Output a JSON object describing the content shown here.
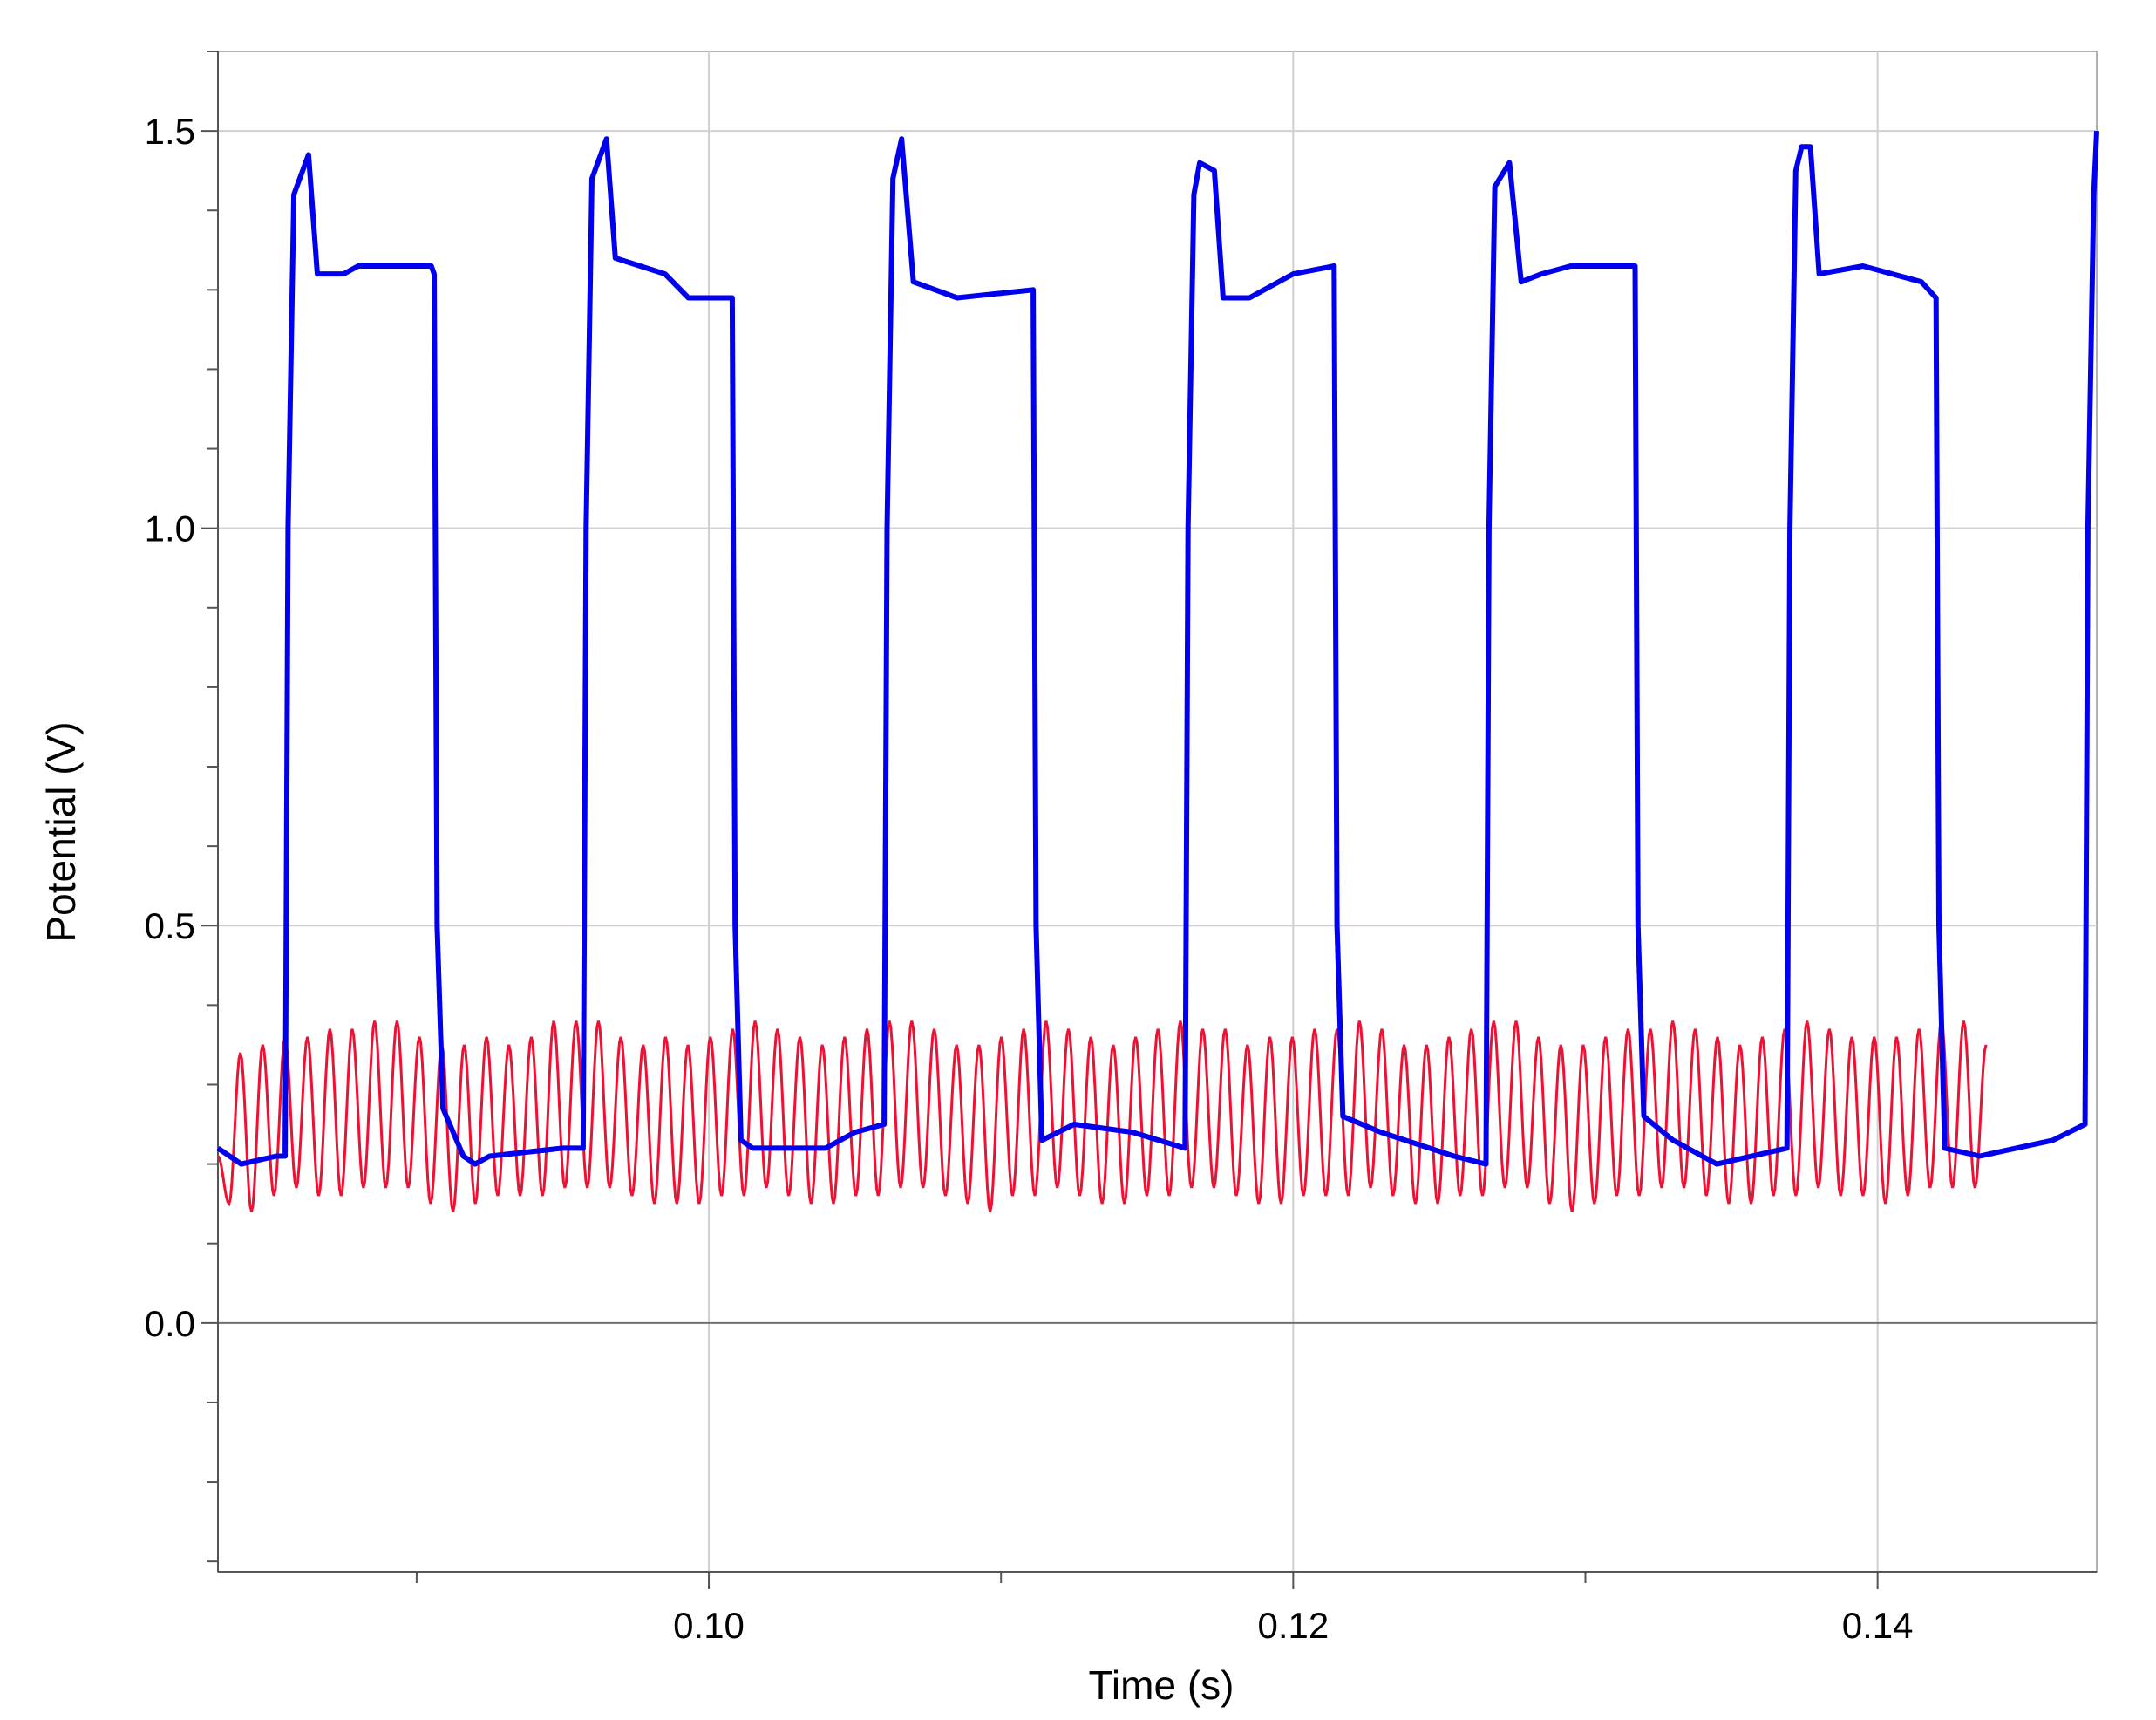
{
  "chart_data": {
    "type": "line",
    "title": "",
    "xlabel": "Time (s)",
    "ylabel": "Potential (V)",
    "xlim": [
      0.0832,
      0.1475
    ],
    "ylim": [
      -0.313,
      1.6
    ],
    "grid": true,
    "x_ticks": [
      0.1,
      0.12,
      0.14
    ],
    "x_tick_labels": [
      "0.10",
      "0.12",
      "0.14"
    ],
    "x_minor_step": 0.01,
    "y_ticks": [
      0.0,
      0.5,
      1.0,
      1.5
    ],
    "y_tick_labels": [
      "0.0",
      "0.5",
      "1.0",
      "1.5"
    ],
    "y_minor_step": 0.1,
    "series": [
      {
        "name": "blue",
        "color": "#0000ee",
        "x": [
          0.0832,
          0.084,
          0.0852,
          0.0855,
          0.0856,
          0.0858,
          0.0863,
          0.0866,
          0.0875,
          0.088,
          0.0905,
          0.0906,
          0.0907,
          0.0909,
          0.0916,
          0.092,
          0.0925,
          0.095,
          0.0957,
          0.0958,
          0.096,
          0.0965,
          0.0968,
          0.0985,
          0.0993,
          0.1008,
          0.1009,
          0.1011,
          0.1015,
          0.104,
          0.105,
          0.106,
          0.1061,
          0.1063,
          0.1066,
          0.107,
          0.1085,
          0.1111,
          0.1112,
          0.1114,
          0.1125,
          0.1145,
          0.1163,
          0.1164,
          0.1166,
          0.1168,
          0.1173,
          0.1176,
          0.1185,
          0.12,
          0.1214,
          0.1215,
          0.1217,
          0.123,
          0.1255,
          0.1266,
          0.1267,
          0.1269,
          0.1274,
          0.1278,
          0.1285,
          0.1295,
          0.1317,
          0.1318,
          0.132,
          0.133,
          0.1345,
          0.1369,
          0.137,
          0.1372,
          0.1374,
          0.1377,
          0.138,
          0.1395,
          0.1415,
          0.142,
          0.1421,
          0.1423,
          0.1435,
          0.146,
          0.1471,
          0.1472,
          0.1474,
          0.1475
        ],
        "y": [
          0.22,
          0.2,
          0.21,
          0.21,
          1.0,
          1.42,
          1.47,
          1.32,
          1.32,
          1.33,
          1.33,
          1.32,
          0.5,
          0.27,
          0.21,
          0.2,
          0.21,
          0.22,
          0.22,
          1.0,
          1.44,
          1.49,
          1.34,
          1.32,
          1.29,
          1.29,
          0.5,
          0.23,
          0.22,
          0.22,
          0.24,
          0.25,
          1.0,
          1.44,
          1.49,
          1.31,
          1.29,
          1.3,
          0.5,
          0.23,
          0.25,
          0.24,
          0.22,
          1.0,
          1.42,
          1.46,
          1.45,
          1.29,
          1.29,
          1.32,
          1.33,
          0.5,
          0.26,
          0.24,
          0.21,
          0.2,
          1.0,
          1.43,
          1.46,
          1.31,
          1.32,
          1.33,
          1.33,
          0.5,
          0.26,
          0.23,
          0.2,
          0.22,
          1.0,
          1.45,
          1.48,
          1.48,
          1.32,
          1.33,
          1.31,
          1.29,
          0.5,
          0.22,
          0.21,
          0.23,
          0.25,
          1.0,
          1.42,
          1.5
        ]
      },
      {
        "name": "red",
        "color": "#ee1133",
        "t_start": 0.0832,
        "half_period": 0.000383,
        "y": [
          0.21,
          0.15,
          0.34,
          0.14,
          0.35,
          0.16,
          0.36,
          0.17,
          0.36,
          0.16,
          0.37,
          0.16,
          0.37,
          0.17,
          0.38,
          0.17,
          0.38,
          0.17,
          0.36,
          0.15,
          0.35,
          0.14,
          0.35,
          0.15,
          0.36,
          0.16,
          0.35,
          0.16,
          0.36,
          0.16,
          0.38,
          0.17,
          0.38,
          0.17,
          0.38,
          0.17,
          0.36,
          0.16,
          0.35,
          0.15,
          0.36,
          0.15,
          0.35,
          0.15,
          0.36,
          0.16,
          0.37,
          0.16,
          0.38,
          0.17,
          0.37,
          0.16,
          0.36,
          0.15,
          0.35,
          0.15,
          0.36,
          0.16,
          0.37,
          0.16,
          0.38,
          0.17,
          0.38,
          0.17,
          0.37,
          0.16,
          0.35,
          0.15,
          0.35,
          0.14,
          0.36,
          0.16,
          0.37,
          0.16,
          0.38,
          0.17,
          0.37,
          0.16,
          0.36,
          0.15,
          0.35,
          0.15,
          0.36,
          0.16,
          0.37,
          0.16,
          0.38,
          0.17,
          0.37,
          0.17,
          0.37,
          0.16,
          0.35,
          0.15,
          0.36,
          0.15,
          0.36,
          0.16,
          0.37,
          0.16,
          0.37,
          0.16,
          0.38,
          0.17,
          0.37,
          0.16,
          0.35,
          0.15,
          0.35,
          0.15,
          0.36,
          0.16,
          0.37,
          0.16,
          0.38,
          0.17,
          0.38,
          0.17,
          0.36,
          0.15,
          0.35,
          0.14,
          0.35,
          0.15,
          0.36,
          0.16,
          0.37,
          0.16,
          0.37,
          0.17,
          0.38,
          0.17,
          0.37,
          0.16,
          0.36,
          0.15,
          0.35,
          0.15,
          0.36,
          0.16,
          0.37,
          0.16,
          0.38,
          0.17,
          0.37,
          0.16,
          0.36,
          0.16,
          0.36,
          0.15,
          0.36,
          0.16,
          0.37,
          0.17,
          0.38,
          0.17,
          0.38,
          0.17,
          0.35
        ]
      }
    ]
  }
}
